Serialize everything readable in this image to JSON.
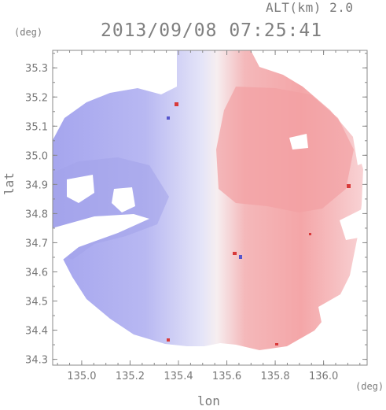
{
  "header": {
    "altitude_label": "ALT(km) 2.0",
    "timestamp": "2013/09/08 07:25:41"
  },
  "axes": {
    "y_unit": "(deg)",
    "x_unit": "(deg)",
    "y_label": "lat",
    "x_label": "lon",
    "y_ticks": [
      "35.3",
      "35.2",
      "35.1",
      "35.0",
      "34.9",
      "34.8",
      "34.7",
      "34.6",
      "34.5",
      "34.4",
      "34.3"
    ],
    "x_ticks": [
      "135.0",
      "135.2",
      "135.4",
      "135.6",
      "135.8",
      "136.0"
    ],
    "lon_range": [
      134.88,
      136.18
    ],
    "lat_range": [
      34.28,
      35.36
    ]
  },
  "map": {
    "type": "radar_doppler_velocity",
    "approaching_color": "#a8a8f0",
    "receding_color": "#f4a8aa",
    "zero_color": "#f2f2fb"
  }
}
